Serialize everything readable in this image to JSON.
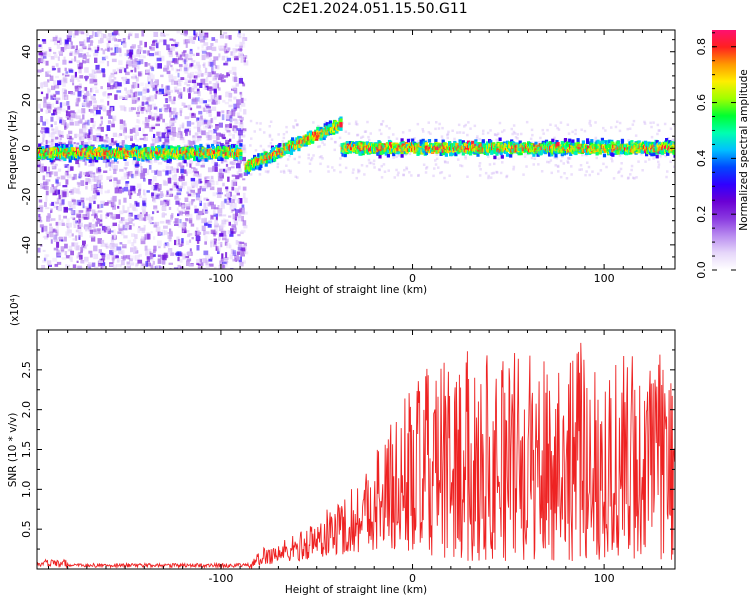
{
  "title": "C2E1.2024.051.15.50.G11",
  "chart_data": [
    {
      "type": "heatmap",
      "name": "spectrogram",
      "xlabel": "Height of straight line (km)",
      "ylabel": "Frequency (Hz)",
      "xlim": [
        -196,
        137
      ],
      "ylim": [
        -50,
        49
      ],
      "xticks": [
        -100,
        0,
        100
      ],
      "yticks": [
        -40,
        -20,
        0,
        20,
        40
      ],
      "colorbar": {
        "label": "Normalized spectral amplitude",
        "range": [
          0.0,
          0.86
        ],
        "ticks": [
          0.0,
          0.2,
          0.4,
          0.6,
          0.8
        ],
        "colormap": [
          "#ffffff",
          "#e6d7fa",
          "#b98cf0",
          "#8a3ae0",
          "#6a00d4",
          "#3000ff",
          "#0048ff",
          "#00c0ff",
          "#00ffb0",
          "#00ff30",
          "#a0ff00",
          "#ffee00",
          "#ff9900",
          "#ff2020",
          "#ff1070"
        ]
      },
      "features": [
        {
          "description": "noise region",
          "x_range": [
            -196,
            -88
          ],
          "freq_range": [
            -50,
            49
          ]
        },
        {
          "description": "signal band",
          "x_range": [
            -196,
            -90
          ],
          "freq_center": -2,
          "freq_width": 10
        },
        {
          "description": "signal band",
          "x_range": [
            -88,
            -38
          ],
          "freq_start": -8,
          "freq_end": 10
        },
        {
          "description": "signal band",
          "x_range": [
            -38,
            137
          ],
          "freq_center": 0,
          "freq_width": 10
        }
      ]
    },
    {
      "type": "line",
      "name": "snr",
      "xlabel": "Height of straight line (km)",
      "ylabel": "SNR (10 * v/v)",
      "y_multiplier": "(x10⁴)",
      "xlim": [
        -196,
        137
      ],
      "ylim": [
        0,
        3.0
      ],
      "xticks": [
        -100,
        0,
        100
      ],
      "yticks": [
        0.5,
        1.0,
        1.5,
        2.0,
        2.5
      ],
      "color": "#ee2222",
      "envelope": {
        "x": [
          -196,
          -100,
          -85,
          -78,
          -60,
          -45,
          -30,
          -18,
          -10,
          0,
          10,
          20,
          40,
          60,
          80,
          100,
          120,
          137
        ],
        "max": [
          0.14,
          0.08,
          0.08,
          0.28,
          0.45,
          0.75,
          1.1,
          1.6,
          1.95,
          2.4,
          2.55,
          2.65,
          2.85,
          2.7,
          2.9,
          2.75,
          2.8,
          2.6
        ],
        "min": [
          0.0,
          0.0,
          0.0,
          0.05,
          0.1,
          0.15,
          0.2,
          0.25,
          0.2,
          0.2,
          0.15,
          0.1,
          0.1,
          0.1,
          0.1,
          0.1,
          0.1,
          0.1
        ]
      }
    }
  ]
}
